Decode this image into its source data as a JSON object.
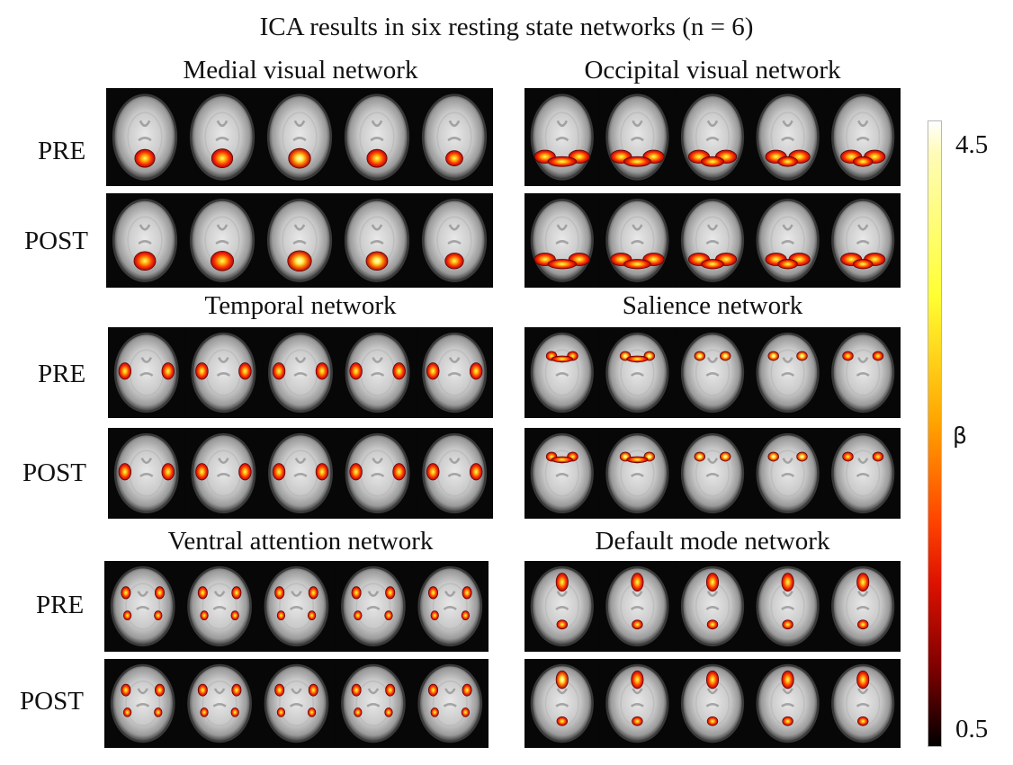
{
  "title": "ICA results in six resting state networks (n = 6)",
  "row_labels": {
    "pre": "PRE",
    "post": "POST"
  },
  "colorbar": {
    "max_label": "4.5",
    "min_label": "0.5",
    "symbol": "β",
    "min": 0.5,
    "max": 4.5,
    "colors": [
      "#000000",
      "#7a0000",
      "#dd1100",
      "#ff4400",
      "#ffa500",
      "#ffff33",
      "#ffffff"
    ]
  },
  "networks": [
    {
      "name": "Medial visual network",
      "slices": 5,
      "pattern": "medial-visual"
    },
    {
      "name": "Occipital visual network",
      "slices": 5,
      "pattern": "occipital-visual"
    },
    {
      "name": "Temporal network",
      "slices": 5,
      "pattern": "temporal"
    },
    {
      "name": "Salience network",
      "slices": 5,
      "pattern": "salience"
    },
    {
      "name": "Ventral attention network",
      "slices": 5,
      "pattern": "ventral-attention"
    },
    {
      "name": "Default mode network",
      "slices": 5,
      "pattern": "default-mode"
    }
  ]
}
